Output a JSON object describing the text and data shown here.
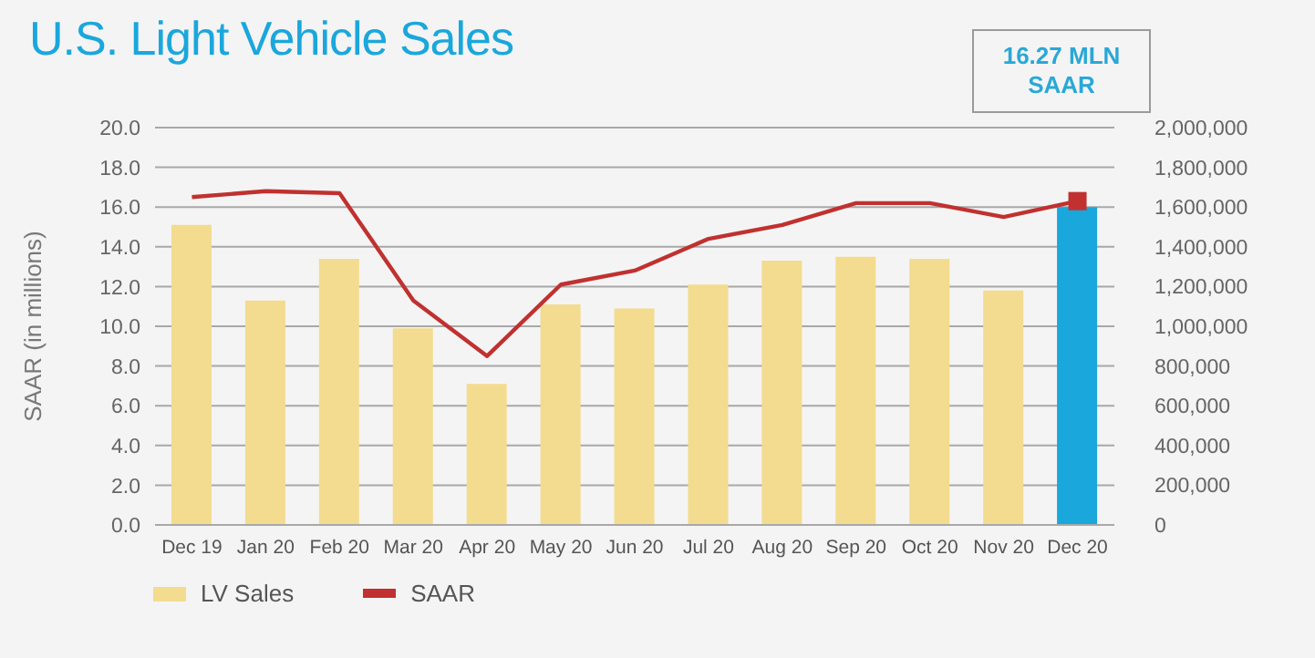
{
  "chart_data": {
    "type": "bar",
    "title": "U.S. Light Vehicle Sales",
    "ylabel": "SAAR (in millions)",
    "categories": [
      "Dec 19",
      "Jan 20",
      "Feb 20",
      "Mar 20",
      "Apr 20",
      "May 20",
      "Jun 20",
      "Jul 20",
      "Aug 20",
      "Sep 20",
      "Oct 20",
      "Nov 20",
      "Dec 20"
    ],
    "series": [
      {
        "name": "LV Sales",
        "axis": "y2",
        "color": "#f3dc8f",
        "colors": [
          "#f3dc8f",
          "#f3dc8f",
          "#f3dc8f",
          "#f3dc8f",
          "#f3dc8f",
          "#f3dc8f",
          "#f3dc8f",
          "#f3dc8f",
          "#f3dc8f",
          "#f3dc8f",
          "#f3dc8f",
          "#f3dc8f",
          "#1aa7dc"
        ],
        "values": [
          1510000,
          1130000,
          1340000,
          990000,
          710000,
          1110000,
          1090000,
          1210000,
          1330000,
          1350000,
          1340000,
          1180000,
          1600000
        ]
      },
      {
        "name": "SAAR",
        "type": "line",
        "color": "#c0312f",
        "values": [
          16.5,
          16.8,
          16.7,
          11.3,
          8.5,
          12.1,
          12.8,
          14.4,
          15.1,
          16.2,
          16.2,
          15.5,
          16.3
        ]
      },
      {
        "type": "scatter",
        "marker": "square",
        "color": "#c0312f",
        "x": [
          "Dec 20"
        ],
        "values": [
          16.3
        ]
      }
    ],
    "ylim": [
      0,
      20
    ],
    "yticks": [
      {
        "value": 0,
        "label": "0.0"
      },
      {
        "value": 2,
        "label": "2.0"
      },
      {
        "value": 4,
        "label": "4.0"
      },
      {
        "value": 6,
        "label": "6.0"
      },
      {
        "value": 8,
        "label": "8.0"
      },
      {
        "value": 10,
        "label": "10.0"
      },
      {
        "value": 12,
        "label": "12.0"
      },
      {
        "value": 14,
        "label": "14.0"
      },
      {
        "value": 16,
        "label": "16.0"
      },
      {
        "value": 18,
        "label": "18.0"
      },
      {
        "value": 20,
        "label": "20.0"
      }
    ],
    "y2lim": [
      0,
      2000000
    ],
    "y2ticks": [
      0,
      {
        "value": 200000,
        "label": "200,000"
      },
      {
        "value": 400000,
        "label": "400,000"
      },
      {
        "value": 600000,
        "label": "600,000"
      },
      {
        "value": 800000,
        "label": "800,000"
      },
      {
        "value": 1000000,
        "label": "1,000,000"
      },
      {
        "value": 1200000,
        "label": "1,200,000"
      },
      {
        "value": 1400000,
        "label": "1,400,000"
      },
      {
        "value": 1600000,
        "label": "1,600,000"
      },
      {
        "value": 1800000,
        "label": "1,800,000"
      },
      {
        "value": 2000000,
        "label": "2,000,000"
      }
    ],
    "annotations": [
      "16.27 MLN\nSAAR"
    ],
    "grid": "y",
    "legend": "bottom left",
    "marker": "none",
    "line_style": "solid"
  }
}
